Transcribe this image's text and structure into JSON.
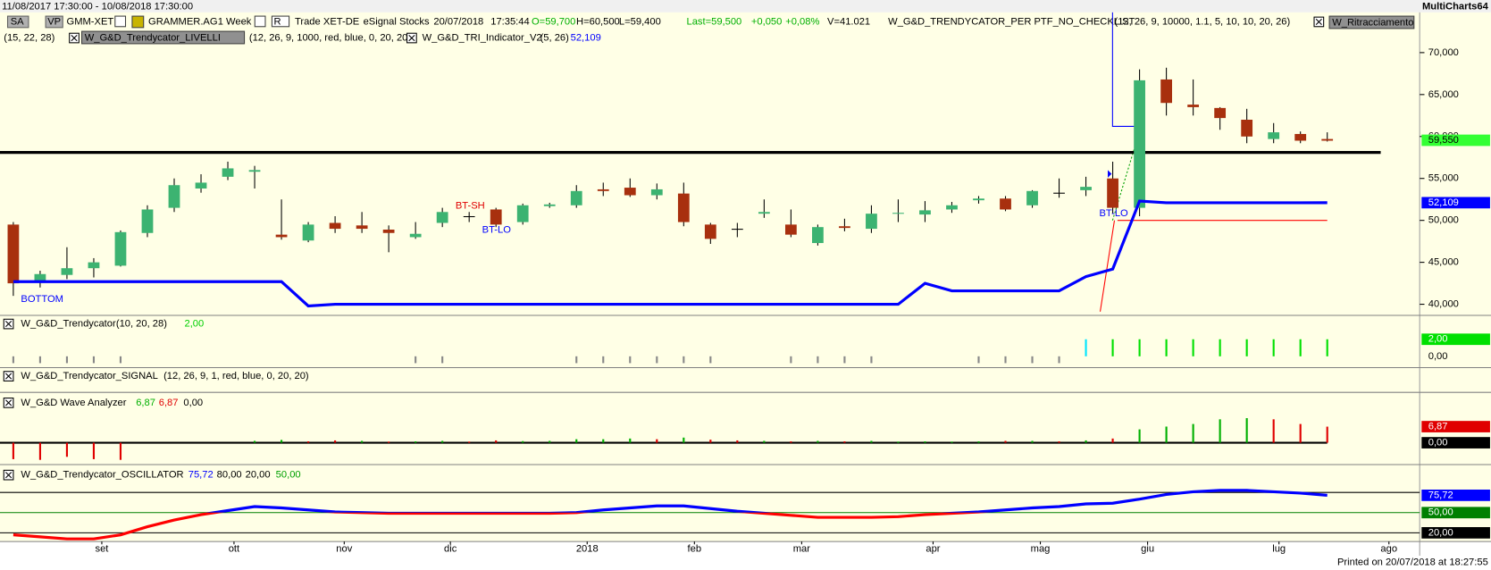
{
  "window": {
    "range": "11/08/2017 17:30:00 - 10/08/2018 17:30:00",
    "app": "MultiCharts64",
    "printed": "Printed on 20/07/2018 at 18:27:55"
  },
  "toolbar": {
    "sa": "SA",
    "vp": "VP",
    "symbol": "GMM-XET",
    "name": "GRAMMER.AG",
    "resolution": "1 Week",
    "r": "R",
    "trade": "Trade",
    "exchange": "XET-DE",
    "feed": "eSignal",
    "category": "Stocks",
    "date": "20/07/2018",
    "time": "17:35:44",
    "open": "O=59,700",
    "high": "H=60,500",
    "low": "L=59,400",
    "last": "Last=59,500",
    "change": "+0,050",
    "change_pct": "+0,08%",
    "volume": "V=41.021",
    "study": "W_G&D_TRENDYCATOR_PER PTF_NO_CHECKLIST",
    "study_params": "(12, 26, 9, 10000, 1.1, 5, 10, 10, 20, 26)",
    "study2": "W_Ritracciamento",
    "study2_params": "(15, 22, 28)",
    "study3": "W_G&D_Trendycator_LIVELLI",
    "study3_params": "(12, 26, 9, 1000, red, blue, 0, 20, 20)",
    "study4": "W_G&D_TRI_Indicator_V2",
    "study4_params": "(5, 26)",
    "study4_value": "52,109"
  },
  "price_panel": {
    "type": "candlestick",
    "ylim": [
      38900,
      74800
    ],
    "yticks": [
      {
        "value": 40000,
        "label": "40,000"
      },
      {
        "value": 45000,
        "label": "45,000"
      },
      {
        "value": 50000,
        "label": "50,000"
      },
      {
        "value": 55000,
        "label": "55,000"
      },
      {
        "value": 60000,
        "label": "60,000"
      },
      {
        "value": 65000,
        "label": "65,000"
      },
      {
        "value": 70000,
        "label": "70,000"
      }
    ],
    "up_color": "#3cb371",
    "down_color": "#a8300e",
    "candles": [
      [
        49500,
        49800,
        41000,
        42500
      ],
      [
        42800,
        44000,
        42000,
        43600
      ],
      [
        43500,
        46800,
        43000,
        44300
      ],
      [
        44300,
        45500,
        43200,
        45000
      ],
      [
        44600,
        48800,
        44500,
        48600
      ],
      [
        48500,
        51800,
        48000,
        51300
      ],
      [
        51500,
        55000,
        51000,
        54200
      ],
      [
        53800,
        55500,
        53300,
        54500
      ],
      [
        55200,
        57000,
        54800,
        56200
      ],
      [
        55800,
        56500,
        53800,
        56000
      ],
      [
        48300,
        52500,
        47700,
        48000
      ],
      [
        47600,
        49800,
        47400,
        49500
      ],
      [
        49700,
        50500,
        48500,
        49000
      ],
      [
        49400,
        51000,
        48500,
        49000
      ],
      [
        48900,
        49400,
        46200,
        48500
      ],
      [
        48000,
        49800,
        47800,
        48400
      ],
      [
        49700,
        51500,
        49200,
        51000
      ],
      [
        50500,
        51000,
        49800,
        50500
      ],
      [
        51300,
        51500,
        49200,
        49500
      ],
      [
        49800,
        52000,
        49500,
        51800
      ],
      [
        51700,
        52100,
        51500,
        51900
      ],
      [
        51800,
        54200,
        51500,
        53500
      ],
      [
        53700,
        54500,
        52900,
        53500
      ],
      [
        53900,
        55000,
        52800,
        53000
      ],
      [
        53000,
        54400,
        52500,
        53700
      ],
      [
        53200,
        54500,
        49300,
        49800
      ],
      [
        49500,
        49700,
        47200,
        47800
      ],
      [
        49000,
        49700,
        48000,
        49000
      ],
      [
        50800,
        52500,
        50300,
        51000
      ],
      [
        49500,
        51300,
        48000,
        48300
      ],
      [
        47300,
        49500,
        47000,
        49200
      ],
      [
        49300,
        50200,
        48700,
        49100
      ],
      [
        49000,
        51800,
        48500,
        50800
      ],
      [
        50800,
        52500,
        49800,
        50900
      ],
      [
        50700,
        52300,
        49800,
        51200
      ],
      [
        51300,
        52200,
        50900,
        51800
      ],
      [
        52400,
        52900,
        52000,
        52600
      ],
      [
        52600,
        52900,
        51100,
        51300
      ],
      [
        51800,
        53600,
        51500,
        53500
      ],
      [
        53300,
        55000,
        52700,
        53300
      ],
      [
        53600,
        55200,
        52900,
        54000
      ],
      [
        55000,
        57000,
        50800,
        51500
      ],
      [
        51500,
        68000,
        50500,
        66700
      ],
      [
        66800,
        68200,
        62500,
        64000
      ],
      [
        63800,
        66800,
        62500,
        63500
      ],
      [
        63400,
        63500,
        60800,
        62200
      ],
      [
        62000,
        63300,
        59200,
        60000
      ],
      [
        59700,
        61600,
        59200,
        60500
      ],
      [
        60300,
        60600,
        59200,
        59500
      ],
      [
        59700,
        60500,
        59400,
        59500
      ]
    ],
    "support": {
      "color": "#0000ff",
      "values": [
        42700,
        42700,
        42700,
        42700,
        42700,
        42700,
        42700,
        42700,
        42700,
        42700,
        42700,
        39800,
        40000,
        40000,
        40000,
        40000,
        40000,
        40000,
        40000,
        40000,
        40000,
        40000,
        40000,
        40000,
        40000,
        40000,
        40000,
        40000,
        40000,
        40000,
        40000,
        40000,
        40000,
        40000,
        42500,
        41600,
        41600,
        41600,
        41600,
        41600,
        43300,
        44200,
        52300,
        52100,
        52100,
        52100,
        52100,
        52100,
        52100,
        52109
      ]
    },
    "support_marker": {
      "value": 52109,
      "label": "52,109"
    },
    "price_marker": {
      "value": 59550,
      "label": "59,550"
    },
    "hline": 58100,
    "red_line": 50000,
    "annotations": [
      "BOTTOM",
      "BT-SH",
      "BT-LO",
      "BT-LO"
    ]
  },
  "trendycator": {
    "title": "W_G&D_Trendycator",
    "params": "(10, 20, 28)",
    "value": "2,00",
    "ylim": [
      -1.33,
      4.8
    ],
    "yticks": [
      {
        "value": 0,
        "label": "0,00"
      }
    ],
    "marker": {
      "value": 2,
      "label": "2,00"
    },
    "values": [
      -0.8,
      -0.8,
      -0.8,
      -0.8,
      -0.8,
      null,
      null,
      null,
      null,
      null,
      null,
      null,
      null,
      null,
      null,
      -0.8,
      -0.8,
      null,
      null,
      null,
      null,
      -0.8,
      -0.8,
      -0.8,
      -0.8,
      -0.8,
      -0.8,
      null,
      null,
      -0.8,
      -0.8,
      -0.8,
      -0.8,
      null,
      null,
      null,
      -0.8,
      -0.8,
      -0.8,
      -0.8,
      2,
      2,
      2,
      2,
      2,
      2,
      2,
      2,
      2,
      2
    ],
    "colors": [
      "#888888",
      "#888888",
      "#888888",
      "#888888",
      "#888888",
      null,
      null,
      null,
      null,
      null,
      null,
      null,
      null,
      null,
      null,
      "#888888",
      "#888888",
      null,
      null,
      null,
      null,
      "#888888",
      "#888888",
      "#888888",
      "#888888",
      "#888888",
      "#888888",
      null,
      null,
      "#888888",
      "#888888",
      "#888888",
      "#888888",
      null,
      null,
      null,
      "#888888",
      "#888888",
      "#888888",
      "#888888",
      "#00e5ff",
      "#00e000",
      "#00e000",
      "#00e000",
      "#00e000",
      "#00e000",
      "#00e000",
      "#00e000",
      "#00e000",
      "#00e000"
    ]
  },
  "signal": {
    "title": "W_G&D_Trendycator_SIGNAL",
    "params": "(12, 26, 9, 1, red, blue, 0, 20, 20)"
  },
  "wave": {
    "title": "W_G&D Wave Analyzer",
    "value_up": "6,87",
    "value_down": "6,87",
    "value_zero": "0,00",
    "ylim": [
      -9.3,
      21.5
    ],
    "yticks": [
      {
        "value": 0,
        "label": "0,00"
      }
    ],
    "marker": {
      "value": 6.87,
      "label": "6,87"
    },
    "values": [
      -7,
      -7.3,
      -6,
      -7,
      -7.3,
      null,
      null,
      null,
      null,
      0.8,
      1.2,
      0.6,
      1,
      0.8,
      0.5,
      0.6,
      0.8,
      0.5,
      1,
      0.7,
      0.8,
      1.5,
      1.5,
      1.8,
      1.5,
      2.2,
      1.3,
      1,
      0.8,
      0.6,
      0.8,
      0.6,
      0.8,
      0.5,
      0.6,
      0.5,
      0.6,
      0.8,
      0.8,
      0.6,
      1,
      1.8,
      5.7,
      6.9,
      8,
      10,
      10.5,
      10,
      8,
      6.87
    ],
    "colors": [
      "#e00000",
      "#e00000",
      "#e00000",
      "#e00000",
      "#e00000",
      null,
      null,
      null,
      null,
      "#00b000",
      "#00b000",
      "#e00000",
      "#e00000",
      "#00b000",
      "#e00000",
      "#00b000",
      "#00b000",
      "#e00000",
      "#e00000",
      "#00b000",
      "#00b000",
      "#00b000",
      "#00b000",
      "#00b000",
      "#e00000",
      "#00b000",
      "#e00000",
      "#e00000",
      "#00b000",
      "#e00000",
      "#00b000",
      "#e00000",
      "#00b000",
      "#00b000",
      "#00b000",
      "#00b000",
      "#00b000",
      "#e00000",
      "#00b000",
      "#e00000",
      "#00b000",
      "#e00000",
      "#00b000",
      "#00b000",
      "#00b000",
      "#00b000",
      "#00b000",
      "#e00000",
      "#e00000",
      "#e00000"
    ]
  },
  "oscillator": {
    "title": "W_G&D_Trendycator_OSCILLATOR",
    "value": "75,72",
    "ylim": [
      7.1,
      121.4
    ],
    "levels": [
      {
        "value": 80,
        "label": "80,00",
        "color": "#000000"
      },
      {
        "value": 20,
        "label": "20,00",
        "color": "#000000"
      },
      {
        "value": 50,
        "label": "50,00",
        "color": "#008000"
      }
    ],
    "split": 50,
    "above_color": "#0000ff",
    "below_color": "#ff0000",
    "marker": {
      "value": 75.72,
      "label": "75,72"
    },
    "values": [
      17,
      14,
      11,
      11,
      17,
      29,
      39,
      47,
      53,
      59,
      57,
      54,
      51,
      50,
      49,
      49,
      49,
      49,
      49,
      49,
      49,
      50,
      54,
      57,
      60,
      60,
      56,
      52,
      49,
      46,
      43,
      43,
      43,
      44,
      47,
      49,
      51,
      54,
      57,
      59,
      63,
      64,
      70,
      77,
      81,
      83,
      83,
      81,
      79,
      75.72
    ]
  },
  "x_axis": [
    {
      "label": "set",
      "index": 3.3
    },
    {
      "label": "ott",
      "index": 8.23
    },
    {
      "label": "nov",
      "index": 12.34
    },
    {
      "label": "dic",
      "index": 16.3
    },
    {
      "label": "2018",
      "index": 21.4
    },
    {
      "label": "feb",
      "index": 25.4
    },
    {
      "label": "mar",
      "index": 29.4
    },
    {
      "label": "apr",
      "index": 34.3
    },
    {
      "label": "mag",
      "index": 38.3
    },
    {
      "label": "giu",
      "index": 42.3
    },
    {
      "label": "lug",
      "index": 47.2
    },
    {
      "label": "ago",
      "index": 51.3
    }
  ]
}
